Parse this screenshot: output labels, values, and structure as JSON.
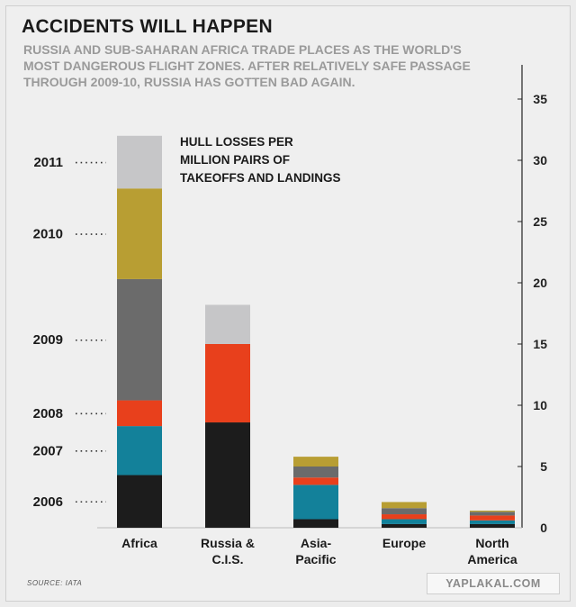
{
  "title": "ACCIDENTS WILL HAPPEN",
  "subtitle": "RUSSIA AND SUB-SAHARAN AFRICA TRADE PLACES AS THE WORLD'S MOST DANGEROUS FLIGHT ZONES. AFTER RELATIVELY SAFE PASSAGE THROUGH 2009-10, RUSSIA HAS GOTTEN BAD AGAIN.",
  "source": "SOURCE: IATA",
  "watermark": "YAPLAKAL.COM",
  "colors": {
    "2006": "#1c1c1c",
    "2007": "#13819a",
    "2008": "#e8401c",
    "2009": "#6b6b6b",
    "2010": "#b89e33",
    "2011": "#c6c6c8"
  },
  "chart_data": {
    "type": "bar",
    "stacked": true,
    "annotation": "HULL LOSSES PER MILLION PAIRS OF TAKEOFFS AND LANDINGS",
    "categories": [
      [
        "Africa"
      ],
      [
        "Russia &",
        "C.I.S."
      ],
      [
        "Asia-",
        "Pacific"
      ],
      [
        "Europe"
      ],
      [
        "North",
        "America"
      ]
    ],
    "series": [
      {
        "name": "2006",
        "values": [
          4.3,
          8.6,
          0.7,
          0.3,
          0.3
        ]
      },
      {
        "name": "2007",
        "values": [
          4.0,
          0,
          2.8,
          0.4,
          0.3
        ]
      },
      {
        "name": "2008",
        "values": [
          2.1,
          6.4,
          0.6,
          0.4,
          0.4
        ]
      },
      {
        "name": "2009",
        "values": [
          9.9,
          0,
          0.9,
          0.5,
          0.3
        ]
      },
      {
        "name": "2010",
        "values": [
          7.4,
          0,
          0.8,
          0.5,
          0.1
        ]
      },
      {
        "name": "2011",
        "values": [
          4.3,
          3.2,
          0,
          0,
          0
        ]
      }
    ],
    "y_ticks": [
      "0",
      "5",
      "10",
      "15",
      "20",
      "25",
      "30",
      "35"
    ],
    "ylim": [
      0,
      35
    ],
    "y_axis_side": "right",
    "legend_position": "left, stacked alongside Africa bar"
  }
}
